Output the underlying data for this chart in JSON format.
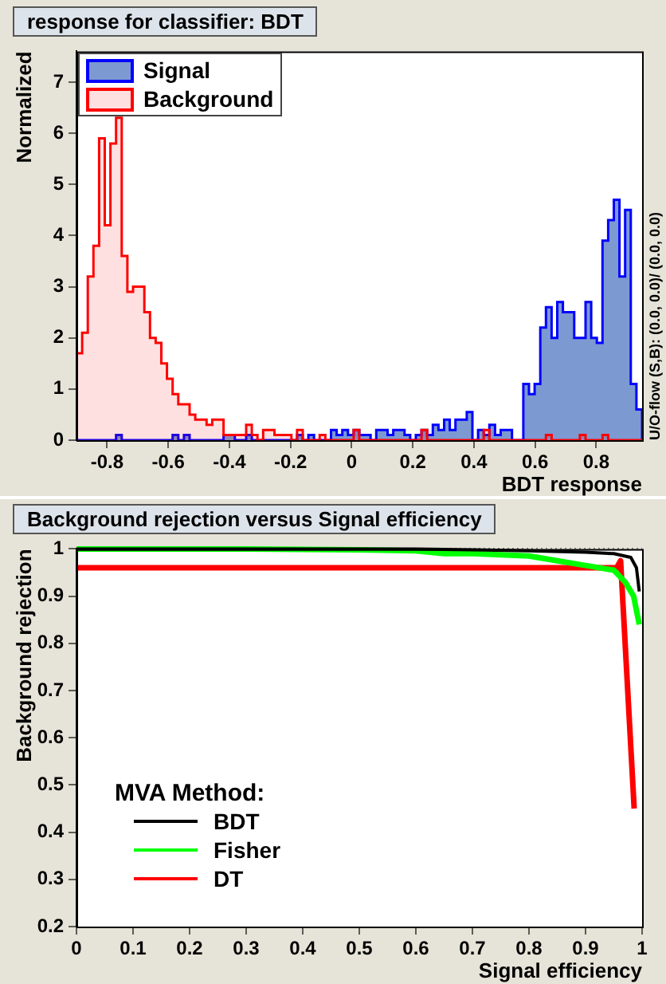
{
  "chart_data": [
    {
      "type": "histogram",
      "title": "response for classifier: BDT",
      "xlabel": "BDT response",
      "ylabel": "Normalized",
      "legend": "top left",
      "grid": false,
      "bins": [
        -0.9,
        -0.8815,
        -0.863,
        -0.8445,
        -0.826,
        -0.8075,
        -0.789,
        -0.7705,
        -0.752,
        -0.7335,
        -0.715,
        -0.6965,
        -0.678,
        -0.6595,
        -0.641,
        -0.6225,
        -0.604,
        -0.5855,
        -0.567,
        -0.5485,
        -0.53,
        -0.5115,
        -0.493,
        -0.4745,
        -0.456,
        -0.4375,
        -0.419,
        -0.4005,
        -0.382,
        -0.3635,
        -0.345,
        -0.3265,
        -0.308,
        -0.2895,
        -0.271,
        -0.2525,
        -0.234,
        -0.2155,
        -0.197,
        -0.1785,
        -0.16,
        -0.1415,
        -0.123,
        -0.1045,
        -0.086,
        -0.0675,
        -0.049,
        -0.0305,
        -0.012,
        0.0065,
        0.025,
        0.0435,
        0.062,
        0.0805,
        0.099,
        0.1175,
        0.136,
        0.1545,
        0.173,
        0.1915,
        0.21,
        0.2285,
        0.247,
        0.2655,
        0.284,
        0.3025,
        0.321,
        0.3395,
        0.358,
        0.3765,
        0.395,
        0.4135,
        0.432,
        0.4505,
        0.469,
        0.4875,
        0.506,
        0.5245,
        0.543,
        0.5615,
        0.58,
        0.5985,
        0.617,
        0.6355,
        0.654,
        0.6725,
        0.691,
        0.7095,
        0.728,
        0.7465,
        0.765,
        0.7835,
        0.802,
        0.8205,
        0.839,
        0.8575,
        0.876,
        0.8945,
        0.913,
        0.9315,
        0.95
      ],
      "series": [
        {
          "name": "Signal",
          "color": "#7d99d1",
          "values": [
            0,
            0,
            0,
            0,
            0,
            0,
            0,
            0.1,
            0,
            0,
            0,
            0,
            0,
            0,
            0,
            0,
            0,
            0.1,
            0,
            0.1,
            0,
            0,
            0,
            0,
            0,
            0,
            0.1,
            0.1,
            0,
            0,
            0.1,
            0,
            0,
            0,
            0,
            0,
            0,
            0,
            0,
            0.1,
            0,
            0.1,
            0,
            0,
            0,
            0.2,
            0.1,
            0.2,
            0.1,
            0.2,
            0.1,
            0.1,
            0,
            0.2,
            0.2,
            0.1,
            0.2,
            0.2,
            0.1,
            0,
            0.1,
            0.2,
            0.1,
            0.3,
            0.2,
            0.4,
            0.2,
            0.4,
            0.4,
            0.55,
            0,
            0.2,
            0.1,
            0.3,
            0.1,
            0.2,
            0.2,
            0,
            0,
            1.1,
            0.9,
            1.1,
            2.2,
            2.6,
            2.0,
            2.7,
            2.5,
            2.5,
            2.0,
            2.0,
            2.7,
            2.0,
            1.9,
            3.9,
            4.3,
            4.7,
            3.2,
            4.5,
            1.1,
            0.6
          ]
        },
        {
          "name": "Background",
          "color": "#ff0000",
          "values": [
            1.7,
            2.1,
            3.2,
            3.8,
            5.9,
            4.2,
            5.8,
            6.3,
            3.6,
            2.9,
            3.0,
            3.0,
            2.5,
            2.0,
            1.9,
            1.5,
            1.2,
            0.9,
            0.7,
            0.7,
            0.5,
            0.4,
            0.4,
            0.3,
            0.4,
            0.4,
            0.1,
            0.1,
            0.1,
            0.1,
            0.3,
            0.1,
            0,
            0.2,
            0.2,
            0.1,
            0.1,
            0.1,
            0,
            0.2,
            0,
            0,
            0,
            0.1,
            0,
            0,
            0,
            0,
            0,
            0.2,
            0,
            0,
            0,
            0,
            0,
            0,
            0,
            0,
            0,
            0,
            0,
            0.2,
            0,
            0,
            0,
            0,
            0,
            0,
            0,
            0,
            0,
            0,
            0.2,
            0,
            0,
            0,
            0,
            0,
            0,
            0,
            0,
            0,
            0,
            0.1,
            0,
            0,
            0,
            0,
            0,
            0.1,
            0,
            0,
            0,
            0.1,
            0,
            0,
            0,
            0,
            0,
            0
          ]
        }
      ],
      "xlim": [
        -0.9,
        0.95
      ],
      "ylim": [
        0,
        7.6
      ],
      "xticks": [
        -0.8,
        -0.6,
        -0.4,
        -0.2,
        0,
        0.2,
        0.4,
        0.6,
        0.8
      ],
      "yticks": [
        0,
        1,
        2,
        3,
        4,
        5,
        6,
        7
      ],
      "annotations": [
        "U/O-flow (S,B): (0.0, 0.0)/ (0.0, 0.0)"
      ]
    },
    {
      "type": "line",
      "title": "Background rejection versus Signal efficiency",
      "xlabel": "Signal efficiency",
      "ylabel": "Background rejection",
      "legend_title": "MVA Method:",
      "legend": "bottom left",
      "grid": true,
      "marker": "none",
      "series": [
        {
          "name": "BDT",
          "color": "#000000",
          "x": [
            0,
            0.6,
            0.7,
            0.8,
            0.9,
            0.95,
            0.98,
            0.99,
            0.995
          ],
          "values": [
            1,
            1,
            0.998,
            0.996,
            0.993,
            0.99,
            0.982,
            0.96,
            0.91
          ]
        },
        {
          "name": "Fisher",
          "color": "#00ff00",
          "x": [
            0,
            0.3,
            0.5,
            0.6,
            0.65,
            0.7,
            0.8,
            0.85,
            0.9,
            0.95,
            0.97,
            0.985,
            0.995
          ],
          "values": [
            1,
            1,
            0.998,
            0.996,
            0.99,
            0.99,
            0.985,
            0.975,
            0.965,
            0.955,
            0.93,
            0.9,
            0.84
          ]
        },
        {
          "name": "DT",
          "color": "#ff0000",
          "x": [
            0,
            0.955,
            0.962,
            0.986
          ],
          "values": [
            0.96,
            0.96,
            0.975,
            0.45
          ]
        }
      ],
      "xlim": [
        0,
        1
      ],
      "ylim": [
        0.2,
        1
      ],
      "xticks": [
        0,
        0.1,
        0.2,
        0.3,
        0.4,
        0.5,
        0.6,
        0.7,
        0.8,
        0.9,
        1
      ],
      "yticks": [
        0.2,
        0.3,
        0.4,
        0.5,
        0.6,
        0.7,
        0.8,
        0.9,
        1
      ]
    }
  ]
}
